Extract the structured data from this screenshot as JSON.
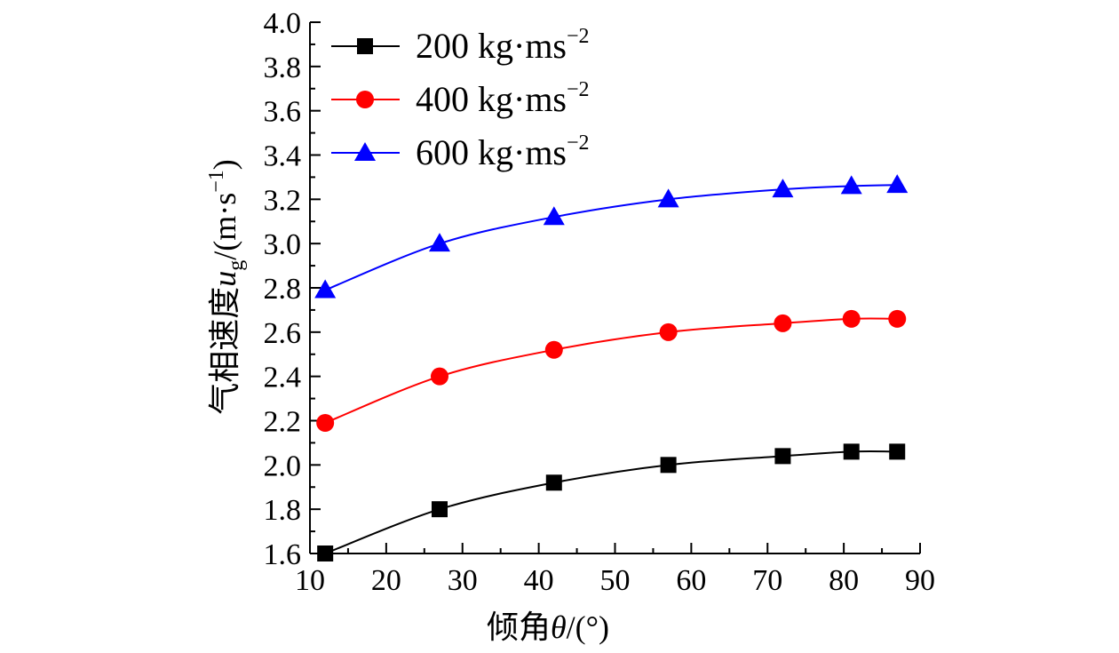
{
  "chart_data": {
    "type": "line",
    "title": "",
    "xlabel": {
      "prefix": "倾角",
      "symbol": "θ",
      "suffix": "/(°)"
    },
    "ylabel": {
      "prefix": "气相速度",
      "symbol": "u",
      "subscript": "g",
      "unit_open": "/(m·s",
      "unit_exp": "−1",
      "unit_close": ")"
    },
    "xlim": [
      10,
      90
    ],
    "ylim": [
      1.6,
      4.0
    ],
    "xticks": [
      10,
      20,
      30,
      40,
      50,
      60,
      70,
      80,
      90
    ],
    "yticks": [
      "1.6",
      "1.8",
      "2.0",
      "2.2",
      "2.4",
      "2.6",
      "2.8",
      "3.0",
      "3.2",
      "3.4",
      "3.6",
      "3.8",
      "4.0"
    ],
    "x": [
      12,
      27,
      42,
      57,
      72,
      81,
      87
    ],
    "series": [
      {
        "name": "200 kg·ms",
        "exp": "−2",
        "color": "#000000",
        "marker": "square",
        "values": [
          1.6,
          1.8,
          1.92,
          2.0,
          2.04,
          2.06,
          2.06
        ]
      },
      {
        "name": "400 kg·ms",
        "exp": "−2",
        "color": "#ff0000",
        "marker": "circle",
        "values": [
          2.19,
          2.4,
          2.52,
          2.6,
          2.64,
          2.66,
          2.66
        ]
      },
      {
        "name": "600 kg·ms",
        "exp": "−2",
        "color": "#0000ff",
        "marker": "triangle",
        "values": [
          2.79,
          3.0,
          3.12,
          3.2,
          3.245,
          3.26,
          3.265
        ]
      }
    ],
    "legend": "top-left"
  }
}
